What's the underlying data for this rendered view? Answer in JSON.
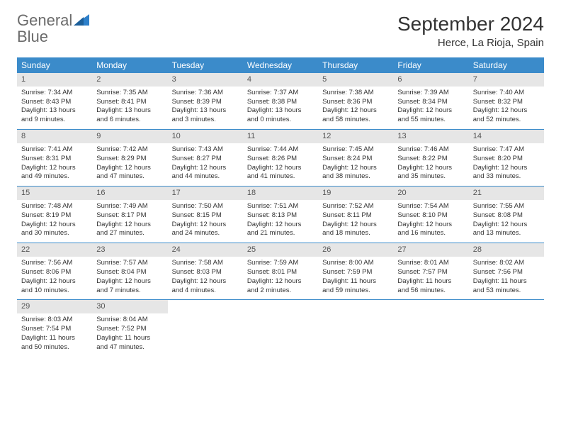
{
  "logo": {
    "word1": "General",
    "word2": "Blue"
  },
  "title": "September 2024",
  "location": "Herce, La Rioja, Spain",
  "colors": {
    "header_bg": "#3b8bca",
    "header_text": "#ffffff",
    "daynum_bg": "#e6e6e6",
    "daynum_text": "#555555",
    "body_text": "#333333",
    "logo_gray": "#6b6b6b",
    "logo_blue": "#2d7fc9",
    "week_border": "#3b8bca"
  },
  "weekdays": [
    "Sunday",
    "Monday",
    "Tuesday",
    "Wednesday",
    "Thursday",
    "Friday",
    "Saturday"
  ],
  "days": [
    {
      "n": "1",
      "sunrise": "7:34 AM",
      "sunset": "8:43 PM",
      "daylight": "13 hours and 9 minutes."
    },
    {
      "n": "2",
      "sunrise": "7:35 AM",
      "sunset": "8:41 PM",
      "daylight": "13 hours and 6 minutes."
    },
    {
      "n": "3",
      "sunrise": "7:36 AM",
      "sunset": "8:39 PM",
      "daylight": "13 hours and 3 minutes."
    },
    {
      "n": "4",
      "sunrise": "7:37 AM",
      "sunset": "8:38 PM",
      "daylight": "13 hours and 0 minutes."
    },
    {
      "n": "5",
      "sunrise": "7:38 AM",
      "sunset": "8:36 PM",
      "daylight": "12 hours and 58 minutes."
    },
    {
      "n": "6",
      "sunrise": "7:39 AM",
      "sunset": "8:34 PM",
      "daylight": "12 hours and 55 minutes."
    },
    {
      "n": "7",
      "sunrise": "7:40 AM",
      "sunset": "8:32 PM",
      "daylight": "12 hours and 52 minutes."
    },
    {
      "n": "8",
      "sunrise": "7:41 AM",
      "sunset": "8:31 PM",
      "daylight": "12 hours and 49 minutes."
    },
    {
      "n": "9",
      "sunrise": "7:42 AM",
      "sunset": "8:29 PM",
      "daylight": "12 hours and 47 minutes."
    },
    {
      "n": "10",
      "sunrise": "7:43 AM",
      "sunset": "8:27 PM",
      "daylight": "12 hours and 44 minutes."
    },
    {
      "n": "11",
      "sunrise": "7:44 AM",
      "sunset": "8:26 PM",
      "daylight": "12 hours and 41 minutes."
    },
    {
      "n": "12",
      "sunrise": "7:45 AM",
      "sunset": "8:24 PM",
      "daylight": "12 hours and 38 minutes."
    },
    {
      "n": "13",
      "sunrise": "7:46 AM",
      "sunset": "8:22 PM",
      "daylight": "12 hours and 35 minutes."
    },
    {
      "n": "14",
      "sunrise": "7:47 AM",
      "sunset": "8:20 PM",
      "daylight": "12 hours and 33 minutes."
    },
    {
      "n": "15",
      "sunrise": "7:48 AM",
      "sunset": "8:19 PM",
      "daylight": "12 hours and 30 minutes."
    },
    {
      "n": "16",
      "sunrise": "7:49 AM",
      "sunset": "8:17 PM",
      "daylight": "12 hours and 27 minutes."
    },
    {
      "n": "17",
      "sunrise": "7:50 AM",
      "sunset": "8:15 PM",
      "daylight": "12 hours and 24 minutes."
    },
    {
      "n": "18",
      "sunrise": "7:51 AM",
      "sunset": "8:13 PM",
      "daylight": "12 hours and 21 minutes."
    },
    {
      "n": "19",
      "sunrise": "7:52 AM",
      "sunset": "8:11 PM",
      "daylight": "12 hours and 18 minutes."
    },
    {
      "n": "20",
      "sunrise": "7:54 AM",
      "sunset": "8:10 PM",
      "daylight": "12 hours and 16 minutes."
    },
    {
      "n": "21",
      "sunrise": "7:55 AM",
      "sunset": "8:08 PM",
      "daylight": "12 hours and 13 minutes."
    },
    {
      "n": "22",
      "sunrise": "7:56 AM",
      "sunset": "8:06 PM",
      "daylight": "12 hours and 10 minutes."
    },
    {
      "n": "23",
      "sunrise": "7:57 AM",
      "sunset": "8:04 PM",
      "daylight": "12 hours and 7 minutes."
    },
    {
      "n": "24",
      "sunrise": "7:58 AM",
      "sunset": "8:03 PM",
      "daylight": "12 hours and 4 minutes."
    },
    {
      "n": "25",
      "sunrise": "7:59 AM",
      "sunset": "8:01 PM",
      "daylight": "12 hours and 2 minutes."
    },
    {
      "n": "26",
      "sunrise": "8:00 AM",
      "sunset": "7:59 PM",
      "daylight": "11 hours and 59 minutes."
    },
    {
      "n": "27",
      "sunrise": "8:01 AM",
      "sunset": "7:57 PM",
      "daylight": "11 hours and 56 minutes."
    },
    {
      "n": "28",
      "sunrise": "8:02 AM",
      "sunset": "7:56 PM",
      "daylight": "11 hours and 53 minutes."
    },
    {
      "n": "29",
      "sunrise": "8:03 AM",
      "sunset": "7:54 PM",
      "daylight": "11 hours and 50 minutes."
    },
    {
      "n": "30",
      "sunrise": "8:04 AM",
      "sunset": "7:52 PM",
      "daylight": "11 hours and 47 minutes."
    }
  ],
  "labels": {
    "sunrise": "Sunrise: ",
    "sunset": "Sunset: ",
    "daylight": "Daylight: "
  },
  "layout": {
    "start_offset": 0,
    "total_cells": 35
  }
}
